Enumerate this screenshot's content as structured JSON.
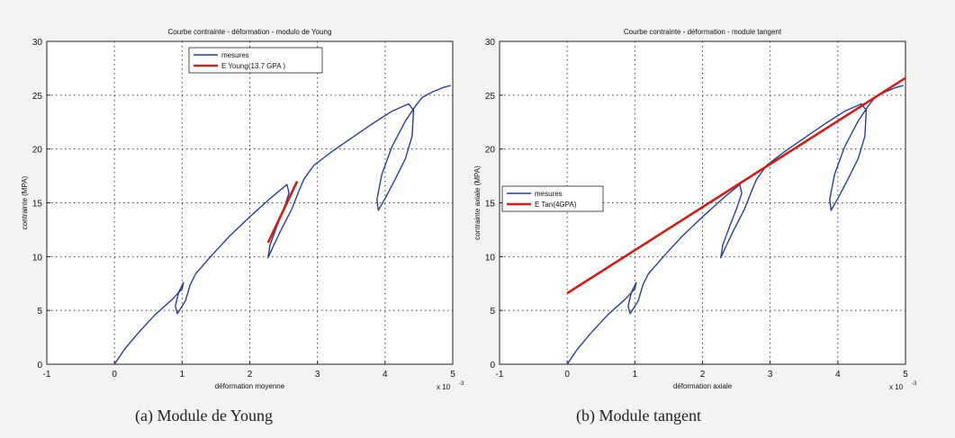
{
  "figure": {
    "caption_a": "(a) Module de Young",
    "caption_b": "(b) Module tangent"
  },
  "chart_data": [
    {
      "type": "line",
      "title": "Courbe contrainte - déformation - modulo de Young",
      "xlabel": "déformation moyenne",
      "ylabel": "contrainte (MPA)",
      "x_multiplier": "x 10",
      "x_multiplier_exp": "-3",
      "xlim": [
        -1,
        5
      ],
      "ylim": [
        0,
        30
      ],
      "xticks": [
        -1,
        0,
        1,
        2,
        3,
        4,
        5
      ],
      "yticks": [
        0,
        5,
        10,
        15,
        20,
        25,
        30
      ],
      "grid": true,
      "legend_position": "top-left",
      "series": [
        {
          "name": "mesures",
          "color": "#2b3f8c",
          "x": [
            0,
            0.15,
            0.35,
            0.6,
            0.85,
            1.0,
            1.02,
            0.95,
            0.9,
            0.93,
            1.05,
            1.12,
            1.2,
            1.45,
            1.7,
            2.0,
            2.3,
            2.55,
            2.58,
            2.5,
            2.4,
            2.3,
            2.27,
            2.35,
            2.48,
            2.62,
            2.72,
            2.8,
            2.95,
            3.2,
            3.5,
            3.8,
            4.1,
            4.35,
            4.42,
            4.4,
            4.3,
            4.15,
            4.0,
            3.9,
            3.88,
            3.95,
            4.1,
            4.3,
            4.45,
            4.55,
            4.7,
            4.85,
            4.97
          ],
          "y": [
            0,
            1.4,
            2.9,
            4.6,
            6.0,
            7.0,
            7.6,
            6.7,
            5.4,
            4.7,
            5.9,
            7.4,
            8.4,
            10.2,
            11.9,
            13.7,
            15.4,
            16.7,
            15.9,
            14.4,
            12.8,
            11.1,
            9.9,
            11.0,
            12.7,
            14.4,
            16.0,
            17.2,
            18.5,
            19.7,
            21.0,
            22.3,
            23.5,
            24.2,
            23.6,
            21.2,
            19.1,
            17.2,
            15.4,
            14.3,
            15.3,
            17.6,
            20.2,
            22.6,
            24.0,
            24.8,
            25.3,
            25.7,
            25.9
          ]
        },
        {
          "name": "E Young(13.7 GPA )",
          "color": "#cc1f1a",
          "x": [
            2.27,
            2.7
          ],
          "y": [
            11.3,
            17.0
          ]
        }
      ]
    },
    {
      "type": "line",
      "title": "Courbe contrainte - déformation - module tangent",
      "xlabel": "déformation axiale",
      "ylabel": "contrainte axiale (MPA)",
      "x_multiplier": "x 10",
      "x_multiplier_exp": "-3",
      "xlim": [
        -1,
        5
      ],
      "ylim": [
        0,
        30
      ],
      "xticks": [
        -1,
        0,
        1,
        2,
        3,
        4,
        5
      ],
      "yticks": [
        0,
        5,
        10,
        15,
        20,
        25,
        30
      ],
      "grid": true,
      "legend_position": "middle-left",
      "series": [
        {
          "name": "mesures",
          "color": "#2b3f8c",
          "x": [
            0,
            0.15,
            0.35,
            0.6,
            0.85,
            1.0,
            1.02,
            0.95,
            0.9,
            0.93,
            1.05,
            1.12,
            1.2,
            1.45,
            1.7,
            2.0,
            2.3,
            2.55,
            2.58,
            2.5,
            2.4,
            2.3,
            2.27,
            2.35,
            2.48,
            2.62,
            2.72,
            2.8,
            2.95,
            3.2,
            3.5,
            3.8,
            4.1,
            4.35,
            4.42,
            4.4,
            4.3,
            4.15,
            4.0,
            3.9,
            3.88,
            3.95,
            4.1,
            4.3,
            4.45,
            4.55,
            4.7,
            4.85,
            4.97
          ],
          "y": [
            0,
            1.4,
            2.9,
            4.6,
            6.0,
            7.0,
            7.6,
            6.7,
            5.4,
            4.7,
            5.9,
            7.4,
            8.4,
            10.2,
            11.9,
            13.7,
            15.4,
            16.7,
            15.9,
            14.4,
            12.8,
            11.1,
            9.9,
            11.0,
            12.7,
            14.4,
            16.0,
            17.2,
            18.5,
            19.7,
            21.0,
            22.3,
            23.5,
            24.2,
            23.6,
            21.2,
            19.1,
            17.2,
            15.4,
            14.3,
            15.3,
            17.6,
            20.2,
            22.6,
            24.0,
            24.8,
            25.3,
            25.7,
            25.9
          ]
        },
        {
          "name": "E Tan(4GPA)",
          "color": "#cc1f1a",
          "x": [
            0,
            5
          ],
          "y": [
            6.6,
            26.6
          ]
        }
      ]
    }
  ]
}
